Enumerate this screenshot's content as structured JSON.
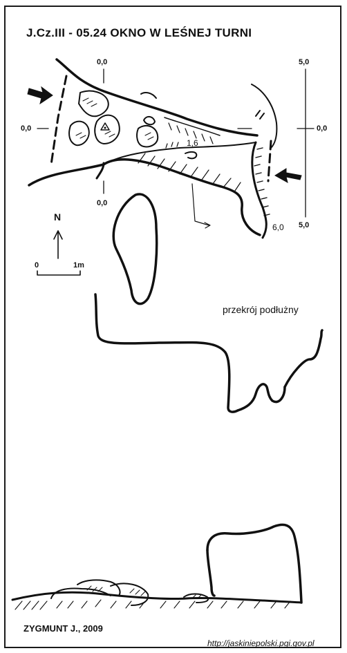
{
  "title": "J.Cz.III - 05.24   OKNO W LEŚNEJ TURNI",
  "plan": {
    "north_label": "N",
    "scale": {
      "start_label": "0",
      "end_label": "1m"
    },
    "depth_labels": {
      "top": "0,0",
      "left": "0,0",
      "bottom": "0,0",
      "right_top": "5,0",
      "right_mid": "0,0",
      "right_bottom": "5,0",
      "inner": "1,6",
      "lower_right": "6,0"
    }
  },
  "section": {
    "caption": "przekrój podłużny"
  },
  "author": "ZYGMUNT J., 2009",
  "source": "http://jaskiniepolski.pgi.gov.pl",
  "colors": {
    "ink": "#111111",
    "background": "#ffffff"
  }
}
